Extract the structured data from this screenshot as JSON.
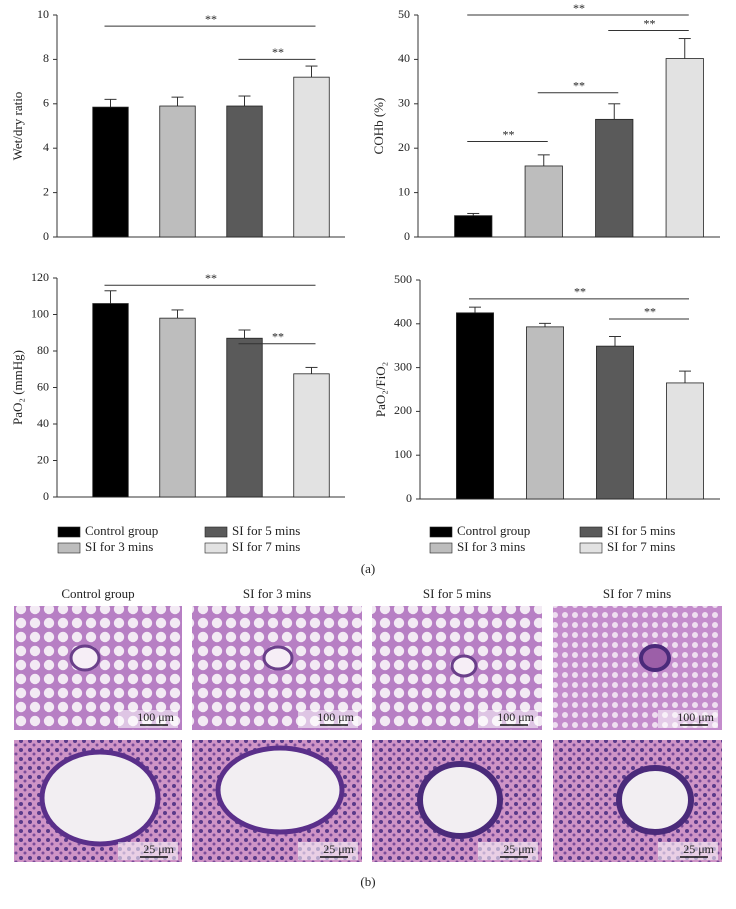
{
  "chart_data": [
    {
      "type": "bar",
      "y_label": "Wet/dry ratio",
      "ylim": [
        0,
        10
      ],
      "yticks": [
        0,
        2,
        4,
        6,
        8,
        10
      ],
      "values": [
        5.85,
        5.9,
        5.9,
        7.2
      ],
      "errors": [
        0.35,
        0.4,
        0.45,
        0.5
      ],
      "colors": [
        "#000000",
        "#bdbdbd",
        "#5a5a5a",
        "#e2e2e2"
      ],
      "annotations": [
        {
          "text": "**",
          "from": 0,
          "to": 3,
          "y": 9.5
        },
        {
          "text": "**",
          "from": 2,
          "to": 3,
          "y": 8.0
        }
      ]
    },
    {
      "type": "bar",
      "y_label": "COHb (%)",
      "ylim": [
        0,
        50
      ],
      "yticks": [
        0,
        10,
        20,
        30,
        40,
        50
      ],
      "values": [
        4.8,
        16,
        26.5,
        40.2
      ],
      "errors": [
        0.5,
        2.5,
        3.5,
        4.5
      ],
      "colors": [
        "#000000",
        "#bdbdbd",
        "#5a5a5a",
        "#e2e2e2"
      ],
      "annotations": [
        {
          "text": "**",
          "from": 0,
          "to": 1,
          "y": 21.5
        },
        {
          "text": "**",
          "from": 1,
          "to": 2,
          "y": 32.5
        },
        {
          "text": "**",
          "from": 2,
          "to": 3,
          "y": 46.5
        },
        {
          "text": "**",
          "from": 0,
          "to": 3,
          "y": 50
        }
      ]
    },
    {
      "type": "bar",
      "y_label": "PaO₂ (mmHg)",
      "ylim": [
        0,
        120
      ],
      "yticks": [
        0,
        20,
        40,
        60,
        80,
        100,
        120
      ],
      "values": [
        106,
        98,
        87,
        67.5
      ],
      "errors": [
        7,
        4.5,
        4.5,
        3.5
      ],
      "colors": [
        "#000000",
        "#bdbdbd",
        "#5a5a5a",
        "#e2e2e2"
      ],
      "annotations": [
        {
          "text": "**",
          "from": 0,
          "to": 3,
          "y": 116
        },
        {
          "text": "**",
          "from": 2,
          "to": 3,
          "y": 84
        }
      ]
    },
    {
      "type": "bar",
      "y_label": "PaO₂/FiO₂",
      "ylim": [
        0,
        500
      ],
      "yticks": [
        0,
        100,
        200,
        300,
        400,
        500
      ],
      "values": [
        425,
        393,
        349,
        265
      ],
      "errors": [
        13,
        8,
        22,
        27
      ],
      "colors": [
        "#000000",
        "#bdbdbd",
        "#5a5a5a",
        "#e2e2e2"
      ],
      "annotations": [
        {
          "text": "**",
          "from": 0,
          "to": 3,
          "y": 457
        },
        {
          "text": "**",
          "from": 2,
          "to": 3,
          "y": 411
        }
      ]
    }
  ],
  "legend": [
    {
      "label": "Control group",
      "color": "#000000"
    },
    {
      "label": "SI for 3 mins",
      "color": "#bdbdbd"
    },
    {
      "label": "SI for 5 mins",
      "color": "#5a5a5a"
    },
    {
      "label": "SI for 7 mins",
      "color": "#e2e2e2"
    }
  ],
  "panel_labels": [
    "(a)",
    "(b)"
  ],
  "histology": {
    "columns": [
      "Control group",
      "SI for 3 mins",
      "SI for 5 mins",
      "SI for 7 mins"
    ],
    "scale_bars": [
      "100 μm",
      "25 μm"
    ]
  }
}
